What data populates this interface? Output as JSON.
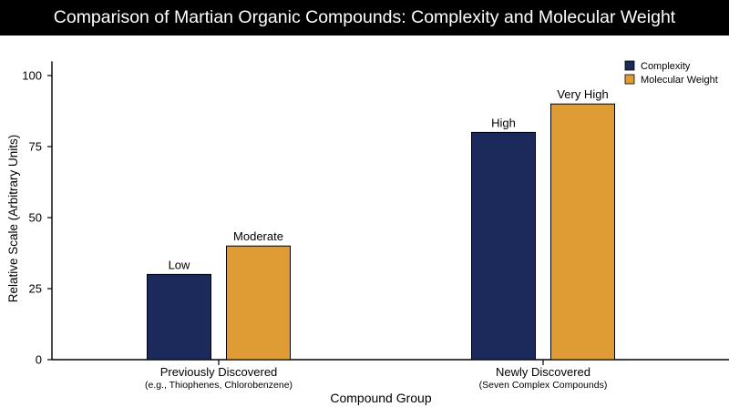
{
  "chart_data": {
    "type": "bar",
    "title": "Comparison of Martian Organic Compounds: Complexity and Molecular Weight",
    "xlabel": "Compound Group",
    "ylabel": "Relative Scale (Arbitrary Units)",
    "ylim": [
      0,
      105
    ],
    "yticks": [
      0,
      25,
      50,
      75,
      100
    ],
    "grid": false,
    "legend_position": "top-right",
    "categories": [
      {
        "label": "Previously Discovered",
        "sublabel": "(e.g., Thiophenes, Chlorobenzene)"
      },
      {
        "label": "Newly Discovered",
        "sublabel": "(Seven Complex Compounds)"
      }
    ],
    "series": [
      {
        "name": "Complexity",
        "color": "#1b2a5a",
        "values": [
          30,
          80
        ],
        "labels": [
          "Low",
          "High"
        ]
      },
      {
        "name": "Molecular Weight",
        "color": "#df9c34",
        "values": [
          40,
          90
        ],
        "labels": [
          "Moderate",
          "Very High"
        ]
      }
    ]
  }
}
